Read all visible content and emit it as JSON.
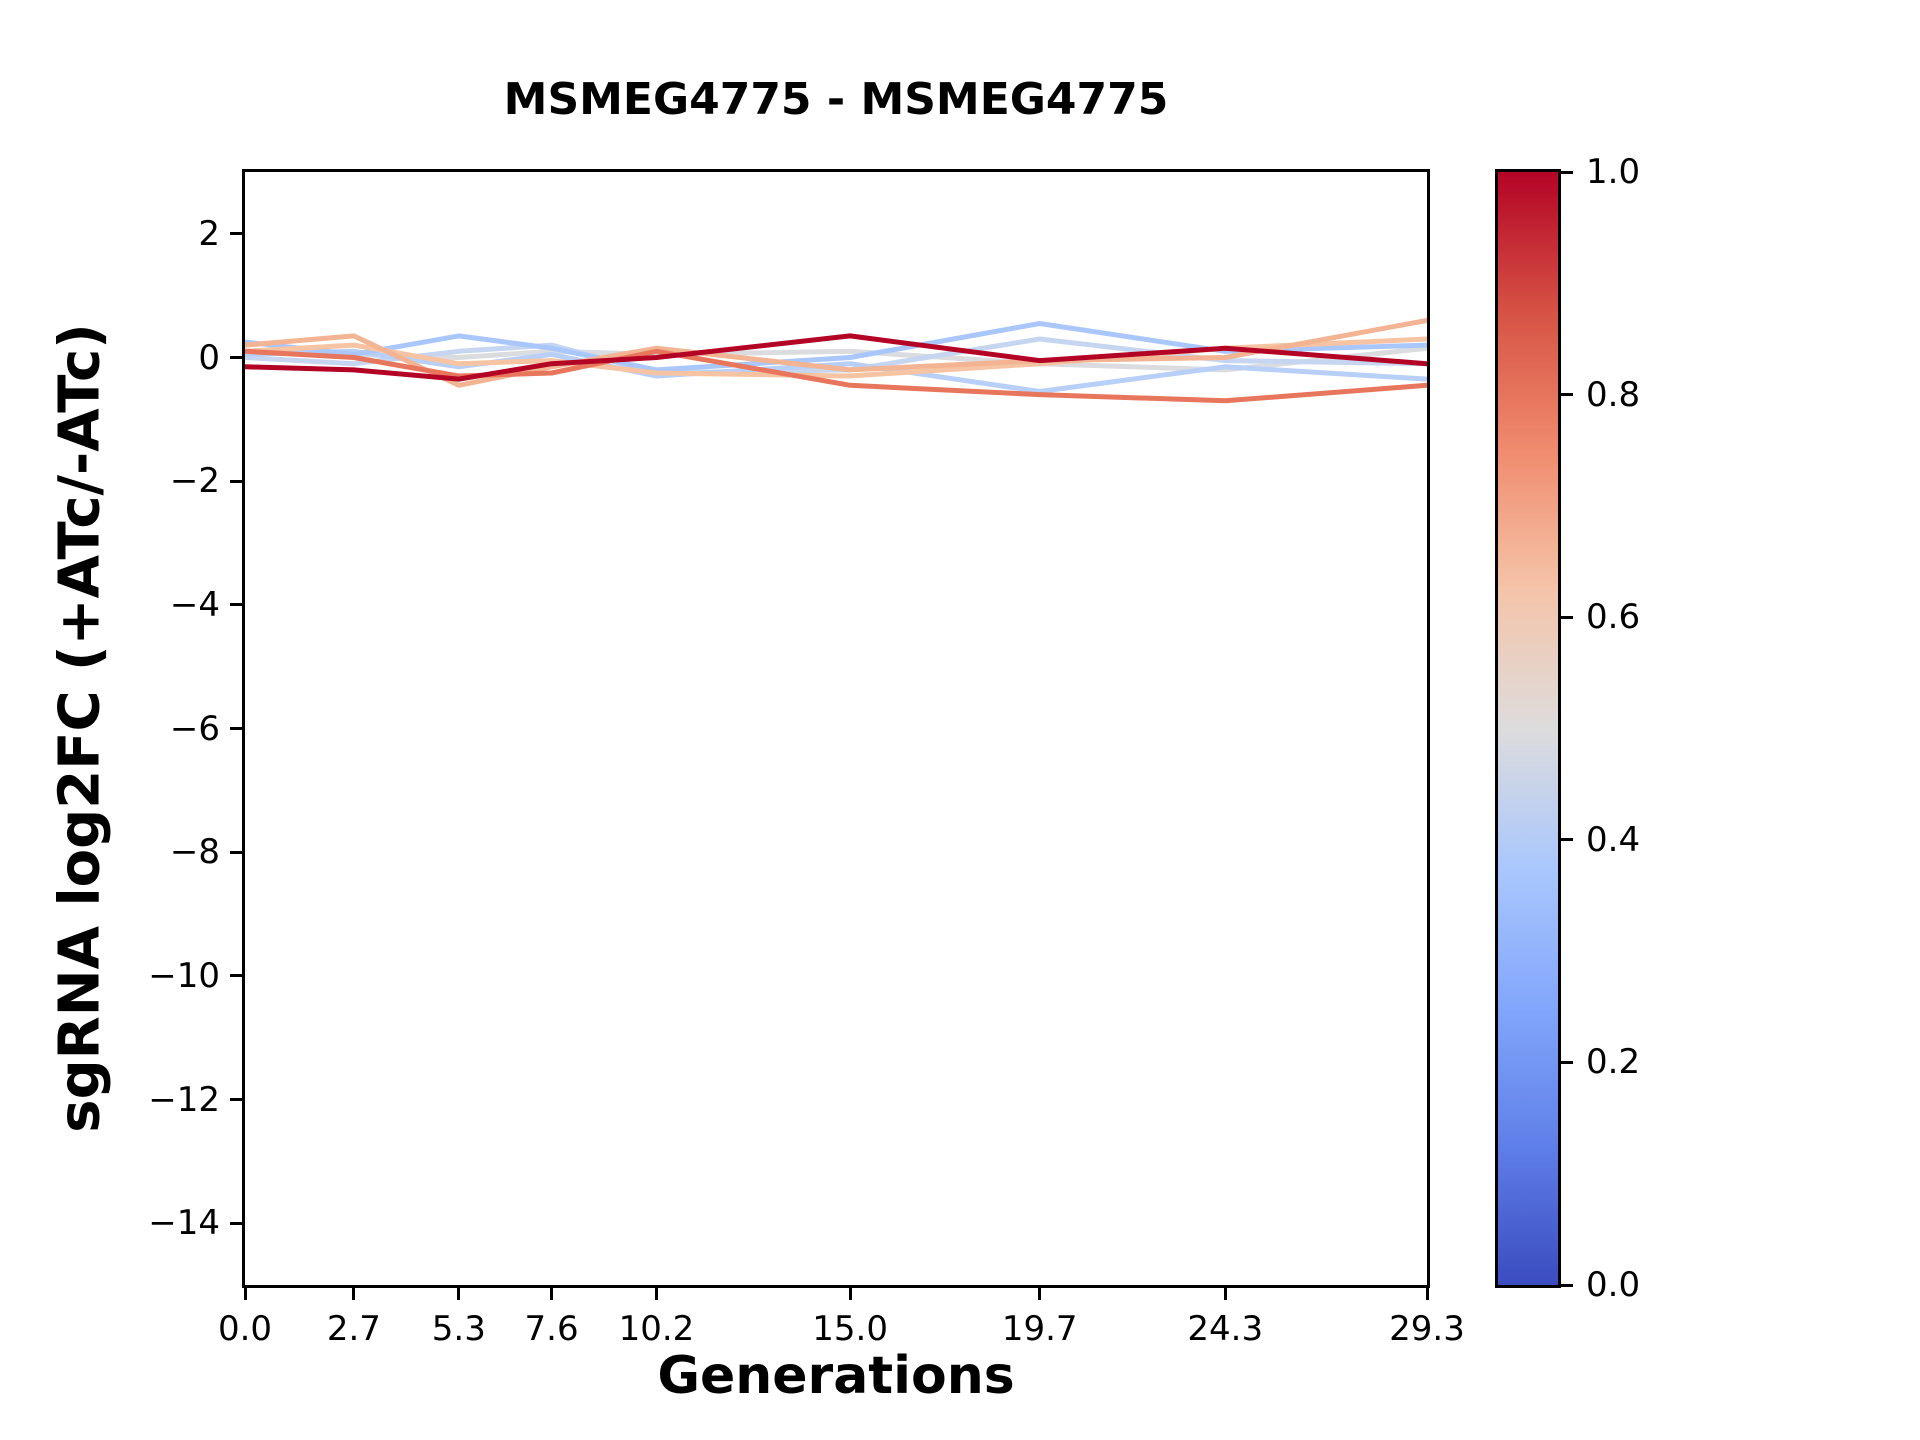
{
  "figure": {
    "background": "#ffffff"
  },
  "chart_data": {
    "type": "line",
    "title": "MSMEG4775 - MSMEG4775",
    "xlabel": "Generations",
    "ylabel": "sgRNA log2FC (+ATc/-ATc)",
    "xlim": [
      0.0,
      29.3
    ],
    "ylim": [
      -15.0,
      3.0
    ],
    "grid": false,
    "legend": "none",
    "x": [
      0.0,
      2.7,
      5.3,
      7.6,
      10.2,
      15.0,
      19.7,
      24.3,
      29.3
    ],
    "xticks": [
      {
        "value": 0.0,
        "label": "0.0"
      },
      {
        "value": 2.7,
        "label": "2.7"
      },
      {
        "value": 5.3,
        "label": "5.3"
      },
      {
        "value": 7.6,
        "label": "7.6"
      },
      {
        "value": 10.2,
        "label": "10.2"
      },
      {
        "value": 15.0,
        "label": "15.0"
      },
      {
        "value": 19.7,
        "label": "19.7"
      },
      {
        "value": 24.3,
        "label": "24.3"
      },
      {
        "value": 29.3,
        "label": "29.3"
      }
    ],
    "yticks": [
      {
        "value": 2,
        "label": "2"
      },
      {
        "value": 0,
        "label": "0"
      },
      {
        "value": -2,
        "label": "−2"
      },
      {
        "value": -4,
        "label": "−4"
      },
      {
        "value": -6,
        "label": "−6"
      },
      {
        "value": -8,
        "label": "−8"
      },
      {
        "value": -10,
        "label": "−10"
      },
      {
        "value": -12,
        "label": "−12"
      },
      {
        "value": -14,
        "label": "−14"
      }
    ],
    "series": [
      {
        "colormap_value": 0.5,
        "color": "#dadce0",
        "values": [
          0.1,
          0.05,
          0.0,
          0.1,
          0.05,
          0.1,
          -0.1,
          -0.2,
          0.15
        ]
      },
      {
        "colormap_value": 0.45,
        "color": "#c6d6f1",
        "values": [
          0.0,
          -0.1,
          0.1,
          0.2,
          -0.25,
          -0.2,
          0.3,
          -0.05,
          -0.1
        ]
      },
      {
        "colormap_value": 0.42,
        "color": "#b8cff8",
        "values": [
          0.05,
          0.1,
          -0.15,
          0.05,
          -0.3,
          -0.1,
          -0.55,
          -0.15,
          -0.35
        ]
      },
      {
        "colormap_value": 0.4,
        "color": "#aac7fd",
        "values": [
          0.25,
          0.05,
          0.35,
          0.15,
          -0.2,
          0.0,
          0.55,
          0.1,
          0.2
        ]
      },
      {
        "colormap_value": 0.62,
        "color": "#f6c4a2",
        "values": [
          0.1,
          0.2,
          -0.1,
          -0.05,
          -0.25,
          -0.3,
          -0.1,
          0.15,
          0.3
        ]
      },
      {
        "colormap_value": 0.65,
        "color": "#f2b492",
        "values": [
          0.2,
          0.35,
          -0.45,
          -0.15,
          0.15,
          -0.2,
          -0.05,
          0.0,
          0.6
        ]
      },
      {
        "colormap_value": 0.8,
        "color": "#e8765c",
        "values": [
          0.1,
          0.0,
          -0.3,
          -0.25,
          0.1,
          -0.45,
          -0.6,
          -0.7,
          -0.45
        ]
      },
      {
        "colormap_value": 1.0,
        "color": "#b40426",
        "values": [
          -0.15,
          -0.2,
          -0.35,
          -0.1,
          0.0,
          0.35,
          -0.05,
          0.15,
          -0.1
        ]
      }
    ],
    "colorbar": {
      "colormap": "coolwarm",
      "min": 0.0,
      "max": 1.0,
      "ticks": [
        {
          "value": 0.0,
          "label": "0.0"
        },
        {
          "value": 0.2,
          "label": "0.2"
        },
        {
          "value": 0.4,
          "label": "0.4"
        },
        {
          "value": 0.6,
          "label": "0.6"
        },
        {
          "value": 0.8,
          "label": "0.8"
        },
        {
          "value": 1.0,
          "label": "1.0"
        }
      ],
      "gradient_stops": [
        {
          "pos": 0.0,
          "color": "#3b4cc0"
        },
        {
          "pos": 0.125,
          "color": "#5f7fe8"
        },
        {
          "pos": 0.25,
          "color": "#82a6fb"
        },
        {
          "pos": 0.375,
          "color": "#aac7fd"
        },
        {
          "pos": 0.5,
          "color": "#dddcdc"
        },
        {
          "pos": 0.625,
          "color": "#f5c4a9"
        },
        {
          "pos": 0.75,
          "color": "#f08b6e"
        },
        {
          "pos": 0.875,
          "color": "#d65244"
        },
        {
          "pos": 1.0,
          "color": "#b40426"
        }
      ]
    }
  }
}
